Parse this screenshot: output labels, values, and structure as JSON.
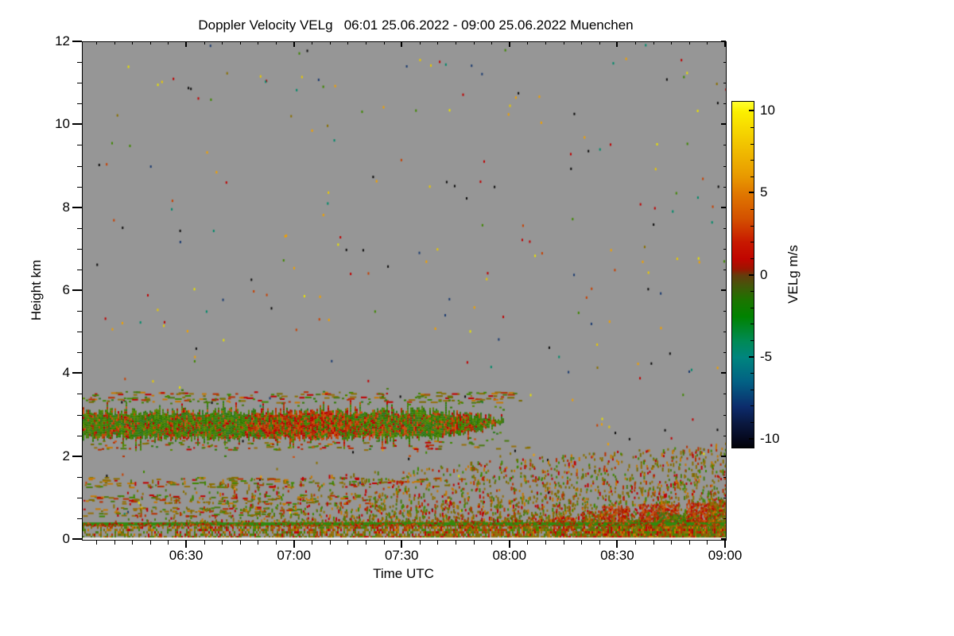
{
  "title": "Doppler Velocity VELg   06:01 25.06.2022 - 09:00 25.06.2022 Muenchen",
  "chart_data": {
    "type": "heatmap",
    "title": "Doppler Velocity VELg   06:01 25.06.2022 - 09:00 25.06.2022 Muenchen",
    "xlabel": "Time UTC",
    "ylabel": "Height km",
    "x_start_utc": "06:01",
    "x_end_utc": "09:00",
    "x_span_minutes": 179,
    "x_ticks": [
      {
        "label": "06:30",
        "minutes": 29
      },
      {
        "label": "07:00",
        "minutes": 59
      },
      {
        "label": "07:30",
        "minutes": 89
      },
      {
        "label": "08:00",
        "minutes": 119
      },
      {
        "label": "08:30",
        "minutes": 149
      },
      {
        "label": "09:00",
        "minutes": 179
      }
    ],
    "x_minor_interval_min": 5,
    "ylim": [
      0,
      12
    ],
    "y_ticks": [
      0,
      2,
      4,
      6,
      8,
      10,
      12
    ],
    "y_minor_interval_km": 0.5,
    "grid": false,
    "no_data_color": "#969696",
    "colorbar": {
      "label": "VELg m/s",
      "ticks": [
        10,
        5,
        0,
        -5,
        -10
      ],
      "minor_interval": 1,
      "value_top": 10.6,
      "value_bottom": -10.5,
      "gradient_stops": [
        {
          "p": 0,
          "c": "#ffff30"
        },
        {
          "p": 2.8,
          "c": "#fbf000"
        },
        {
          "p": 12.3,
          "c": "#f2c400"
        },
        {
          "p": 21.8,
          "c": "#e89800"
        },
        {
          "p": 26.5,
          "c": "#e07800"
        },
        {
          "p": 33.6,
          "c": "#d45200"
        },
        {
          "p": 40.7,
          "c": "#c81800"
        },
        {
          "p": 45.5,
          "c": "#c00500"
        },
        {
          "p": 48.3,
          "c": "#9c1400"
        },
        {
          "p": 50.2,
          "c": "#643c0c"
        },
        {
          "p": 53.1,
          "c": "#44560a"
        },
        {
          "p": 57.3,
          "c": "#1c7400"
        },
        {
          "p": 62.1,
          "c": "#008200"
        },
        {
          "p": 69.2,
          "c": "#008a55"
        },
        {
          "p": 73.9,
          "c": "#00857e"
        },
        {
          "p": 81.1,
          "c": "#026084"
        },
        {
          "p": 88.2,
          "c": "#0c2c6c"
        },
        {
          "p": 93.0,
          "c": "#0a1840"
        },
        {
          "p": 97.7,
          "c": "#05081c"
        },
        {
          "p": 100,
          "c": "#020308"
        }
      ]
    },
    "palettes": {
      "reds": [
        "#c00000",
        "#b83000",
        "#c44a00",
        "#a82800",
        "#d05010"
      ],
      "greens": [
        "#3f8800",
        "#4a7a10",
        "#2f7a20",
        "#5a8a00",
        "#317a00"
      ],
      "olives": [
        "#8a7000",
        "#7a6a00",
        "#96700a",
        "#6b6b00"
      ],
      "mixed": [
        "#8a7000",
        "#7a6a00",
        "#c00000",
        "#b83000",
        "#3f8800",
        "#4a7a10",
        "#c87800",
        "#96700a"
      ],
      "noise": [
        "#e8c800",
        "#f0a000",
        "#c84000",
        "#c00000",
        "#c00000",
        "#f0a000",
        "#3f8800",
        "#008a6a",
        "#1a3a70",
        "#0a0a0a",
        "#0a0a0a",
        "#8a7000",
        "#e8e000"
      ]
    },
    "features": [
      {
        "type": "noise",
        "count": 280,
        "t": [
          0,
          179
        ],
        "km": [
          0.5,
          12
        ],
        "palette": "noise"
      },
      {
        "type": "dash_row",
        "t": [
          1,
          122
        ],
        "km": [
          3.32,
          3.58
        ],
        "count": 175,
        "palette": "mixed",
        "max_w": 7
      },
      {
        "type": "dash_row",
        "t": [
          1,
          126
        ],
        "km": [
          2.18,
          2.42
        ],
        "count": 95,
        "palette": "mixed",
        "max_w": 6
      },
      {
        "type": "dash_row",
        "t": [
          0,
          105
        ],
        "km": [
          1.28,
          1.52
        ],
        "count": 150,
        "palette": "mixed",
        "max_w": 7
      },
      {
        "type": "dash_row",
        "t": [
          0,
          80
        ],
        "km": [
          0.88,
          1.1
        ],
        "count": 120,
        "palette": "mixed",
        "max_w": 6
      },
      {
        "type": "dash_row",
        "t": [
          0,
          62
        ],
        "km": [
          0.58,
          0.8
        ],
        "count": 100,
        "palette": "mixed",
        "max_w": 6
      },
      {
        "type": "field",
        "t": [
          0,
          179
        ],
        "t_pow": 0.5,
        "base_km": 0.42,
        "falloff": 2.2,
        "count": 2800,
        "palette": "mixed",
        "envelope": [
          [
            0,
            1.5
          ],
          [
            55,
            1.5
          ],
          [
            110,
            1.9
          ],
          [
            179,
            2.35
          ]
        ]
      },
      {
        "type": "cloud_band",
        "t": [
          0,
          117
        ],
        "top_km": 3.1,
        "bottom_km": 2.48,
        "taper_start": 98,
        "end_top": 2.95,
        "end_bottom": 2.8,
        "red_palette": "reds",
        "green_palette": "greens",
        "red_bias": [
          0.15,
          0.6
        ]
      },
      {
        "type": "patch",
        "t": [
          121,
          127
        ],
        "km": [
          0.08,
          0.45
        ],
        "palette": "mixed",
        "density": 0.5
      },
      {
        "type": "patch",
        "t": [
          131,
          137
        ],
        "km": [
          0.08,
          0.55
        ],
        "palette": "reds",
        "density": 0.55
      },
      {
        "type": "patch",
        "t": [
          139,
          146
        ],
        "km": [
          0.08,
          0.7
        ],
        "palette": "mixed",
        "density": 0.6
      },
      {
        "type": "patch",
        "t": [
          145,
          152
        ],
        "km": [
          0.05,
          0.8
        ],
        "palette": "reds",
        "density": 0.75
      },
      {
        "type": "patch",
        "t": [
          151,
          156
        ],
        "km": [
          0.05,
          0.5
        ],
        "palette": "greens",
        "density": 0.7
      },
      {
        "type": "patch",
        "t": [
          155,
          166
        ],
        "km": [
          0.05,
          0.85
        ],
        "palette": "reds",
        "density": 0.8
      },
      {
        "type": "patch",
        "t": [
          159,
          165
        ],
        "km": [
          0.35,
          0.65
        ],
        "palette": "greens",
        "density": 0.5
      },
      {
        "type": "patch",
        "t": [
          164,
          171
        ],
        "km": [
          0.05,
          0.6
        ],
        "palette": "greens",
        "density": 0.75
      },
      {
        "type": "patch",
        "t": [
          168,
          176
        ],
        "km": [
          0.08,
          0.9
        ],
        "palette": "reds",
        "density": 0.8
      },
      {
        "type": "patch",
        "t": [
          174,
          179
        ],
        "km": [
          0.05,
          1.0
        ],
        "palette": "mixed",
        "density": 0.8
      },
      {
        "type": "ground",
        "km": [
          0.08,
          0.38
        ],
        "density_left": 0.45,
        "density_right": 0.95,
        "palette": "mixed"
      },
      {
        "type": "hline",
        "km": [
          0.34,
          0.42
        ],
        "color": "#2f8a10",
        "speckle_palette": "reds",
        "speckle_count": 420
      },
      {
        "type": "strip",
        "km": [
          0,
          0.055
        ],
        "color": "#f2f2f2"
      }
    ]
  },
  "axes": {
    "x_label": "Time UTC",
    "y_label": "Height km",
    "colorbar_label": "VELg m/s"
  }
}
